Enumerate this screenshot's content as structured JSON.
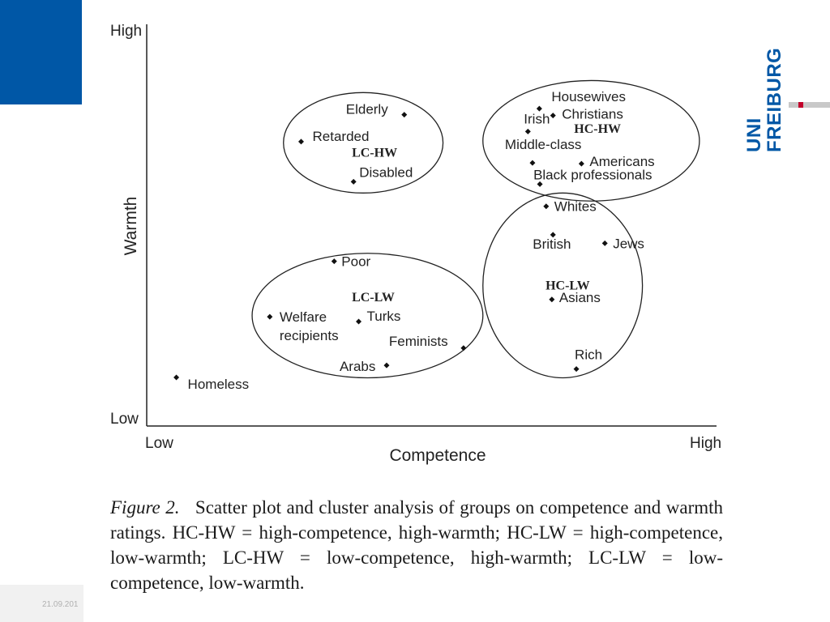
{
  "footer": {
    "date": "21.09.201"
  },
  "logo": {
    "line1": "UNI",
    "line2": "FREIBURG",
    "color": "#0057a6",
    "accent_red": "#c1002a"
  },
  "chart_data": {
    "type": "scatter",
    "xlabel": "Competence",
    "ylabel": "Warmth",
    "x_tick_labels": [
      "Low",
      "High"
    ],
    "y_tick_labels": [
      "Low",
      "High"
    ],
    "xlim": [
      0,
      100
    ],
    "ylim": [
      0,
      100
    ],
    "points": [
      {
        "label": "Elderly",
        "x": 45.2,
        "y": 77.5
      },
      {
        "label": "Retarded",
        "x": 27.1,
        "y": 70.8
      },
      {
        "label": "Disabled",
        "x": 36.3,
        "y": 60.8
      },
      {
        "label": "Housewives",
        "x": 68.9,
        "y": 79.0
      },
      {
        "label": "Christians",
        "x": 71.3,
        "y": 77.3
      },
      {
        "label": "Irish",
        "x": 66.9,
        "y": 73.3
      },
      {
        "label": "Middle-class",
        "x": 67.7,
        "y": 65.5
      },
      {
        "label": "Americans",
        "x": 76.3,
        "y": 65.3
      },
      {
        "label": "Black professionals",
        "x": 69.0,
        "y": 60.2
      },
      {
        "label": "Whites",
        "x": 70.1,
        "y": 54.7
      },
      {
        "label": "British",
        "x": 71.3,
        "y": 47.6
      },
      {
        "label": "Jews",
        "x": 80.4,
        "y": 45.5
      },
      {
        "label": "Asians",
        "x": 71.1,
        "y": 31.5
      },
      {
        "label": "Rich",
        "x": 75.4,
        "y": 14.2
      },
      {
        "label": "Poor",
        "x": 32.9,
        "y": 41.0
      },
      {
        "label": "Welfare recipients",
        "x": 21.6,
        "y": 27.2
      },
      {
        "label": "Turks",
        "x": 37.2,
        "y": 26.0
      },
      {
        "label": "Feminists",
        "x": 55.6,
        "y": 19.4
      },
      {
        "label": "Arabs",
        "x": 42.1,
        "y": 15.1
      },
      {
        "label": "Homeless",
        "x": 5.2,
        "y": 12.1
      }
    ],
    "clusters": [
      {
        "label": "LC-HW",
        "x_range": [
          24.0,
          52.0
        ],
        "y_range": [
          58.0,
          83.0
        ],
        "label_x": 36.0,
        "label_y": 67.0
      },
      {
        "label": "HC-HW",
        "x_range": [
          59.0,
          97.0
        ],
        "y_range": [
          56.0,
          86.0
        ],
        "label_x": 75.0,
        "label_y": 73.0
      },
      {
        "label": "HC-LW",
        "x_range": [
          59.0,
          87.0
        ],
        "y_range": [
          12.0,
          58.0
        ],
        "label_x": 70.0,
        "label_y": 34.0
      },
      {
        "label": "LC-LW",
        "x_range": [
          18.5,
          59.0
        ],
        "y_range": [
          12.0,
          43.0
        ],
        "label_x": 36.0,
        "label_y": 31.0
      }
    ]
  },
  "caption": {
    "label": "Figure 2.",
    "text": "Scatter plot and cluster analysis of groups on competence and warmth ratings. HC-HW = high-competence, high-warmth; HC-LW = high-competence, low-warmth; LC-HW = low-competence, high-warmth; LC-LW = low-competence, low-warmth."
  }
}
